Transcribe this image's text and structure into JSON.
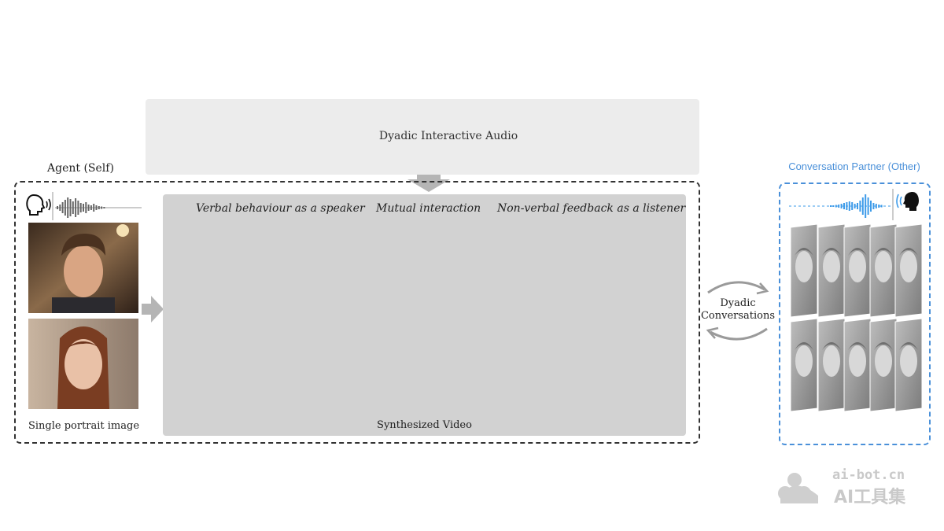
{
  "audio": {
    "title": "Dyadic Interactive Audio",
    "partner_color": "#3d9be9",
    "agent_color": "#111111"
  },
  "agent": {
    "label": "Agent (Self)",
    "portrait_caption": "Single portrait image"
  },
  "video": {
    "caption": "Synthesized Video",
    "phases": [
      "Verbal behaviour as a speaker",
      "Mutual interaction",
      "Non-verbal feedback as a listener"
    ]
  },
  "dyadic": {
    "line1": "Dyadic",
    "line2": "Conversations"
  },
  "partner": {
    "label": "Conversation Partner (Other)",
    "color": "#4a90d9"
  },
  "watermark": {
    "url": "ai-bot.cn",
    "name": "AI工具集"
  },
  "icons": [
    "speaking-head-icon",
    "sound-wave-icon",
    "arrow-right-icon",
    "arrow-down-icon",
    "cycle-arrows-icon"
  ]
}
